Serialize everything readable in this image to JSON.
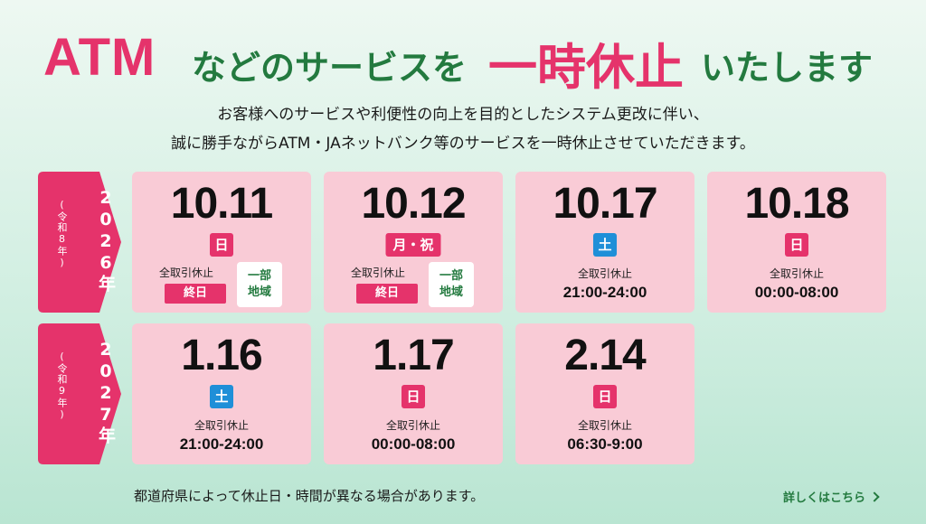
{
  "headline": {
    "part1": "ATM",
    "part2": "などのサービスを",
    "part3": "一時休止",
    "part4": "いたします"
  },
  "subtitle": {
    "line1": "お客様へのサービスや利便性の向上を目的としたシステム更改に伴い、",
    "line2": "誠に勝手ながらATM・JAネットバンク等のサービスを一時休止させていただきます。"
  },
  "years": [
    {
      "label": "2026年",
      "era": "(令和8年)"
    },
    {
      "label": "2027年",
      "era": "(令和9年)"
    }
  ],
  "cards": [
    {
      "date": "10.11",
      "day": "日",
      "status": "全取引休止",
      "allday": "終日",
      "partial_line1": "一部",
      "partial_line2": "地域"
    },
    {
      "date": "10.12",
      "day": "月・祝",
      "status": "全取引休止",
      "allday": "終日",
      "partial_line1": "一部",
      "partial_line2": "地域"
    },
    {
      "date": "10.17",
      "day": "土",
      "status": "全取引休止",
      "time": "21:00-24:00"
    },
    {
      "date": "10.18",
      "day": "日",
      "status": "全取引休止",
      "time": "00:00-08:00"
    },
    {
      "date": "1.16",
      "day": "土",
      "status": "全取引休止",
      "time": "21:00-24:00"
    },
    {
      "date": "1.17",
      "day": "日",
      "status": "全取引休止",
      "time": "00:00-08:00"
    },
    {
      "date": "2.14",
      "day": "日",
      "status": "全取引休止",
      "time": "06:30-9:00"
    }
  ],
  "footer": {
    "note": "都道府県によって休止日・時間が異なる場合があります。",
    "link": "詳しくはこちら"
  },
  "colors": {
    "accent_red": "#e5336b",
    "accent_green": "#237a3f",
    "saturday_blue": "#1f8fd8",
    "card_pink": "#f9cbd6"
  }
}
